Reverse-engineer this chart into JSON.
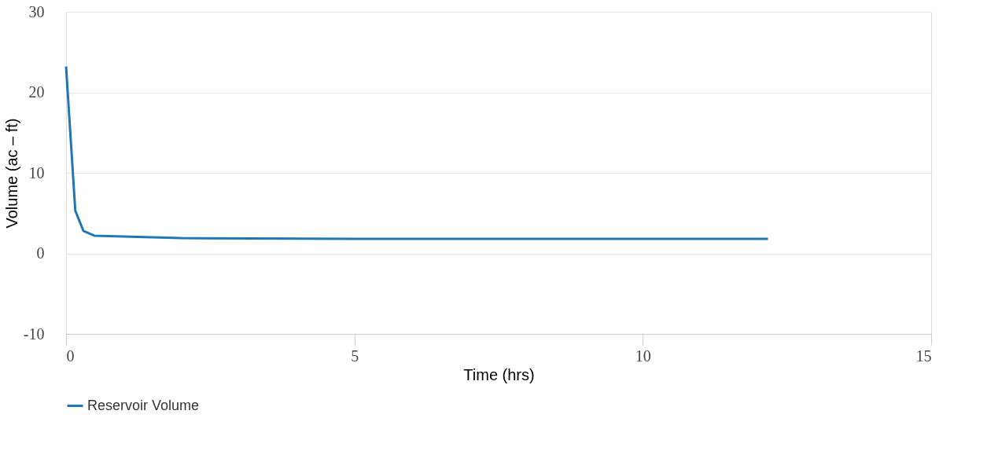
{
  "chart_data": {
    "type": "line",
    "xlabel": "Time (hrs)",
    "ylabel": "Volume (ac – ft)",
    "series": [
      {
        "name": "Reservoir Volume",
        "color": "#1f77b4",
        "x": [
          0,
          0.16,
          0.3,
          0.49,
          2.0,
          5,
          8,
          10,
          12.17
        ],
        "values": [
          23.2,
          5.3,
          2.8,
          2.2,
          1.9,
          1.8,
          1.8,
          1.8,
          1.8
        ]
      }
    ],
    "xlim": [
      0,
      15
    ],
    "xticks": [
      0,
      5,
      10,
      15
    ],
    "ylim": [
      -10,
      30
    ],
    "yticks": [
      -10,
      0,
      10,
      20,
      30
    ],
    "grid": "y",
    "legend": "bottom",
    "marker": "none",
    "line_style": "solid"
  }
}
